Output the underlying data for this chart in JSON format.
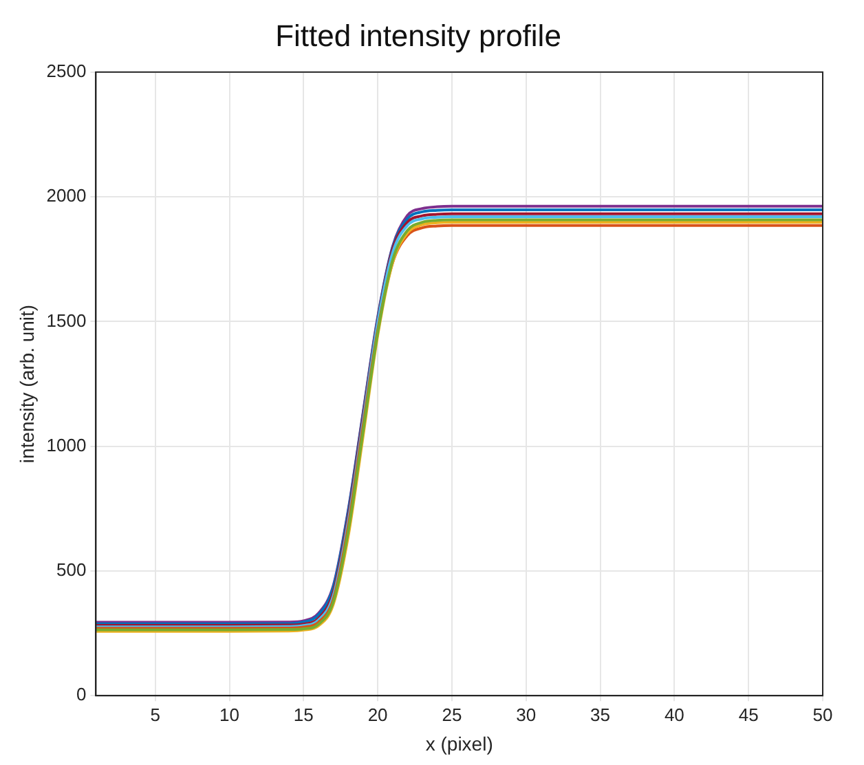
{
  "chart_data": {
    "type": "line",
    "title": "Fitted intensity profile",
    "xlabel": "x (pixel)",
    "ylabel": "intensity (arb. unit)",
    "x": [
      1,
      5,
      10,
      14,
      15,
      16,
      17,
      18,
      19,
      20,
      21,
      22,
      23,
      24,
      25,
      30,
      40,
      50
    ],
    "xlim": [
      1,
      50
    ],
    "xticks": [
      5,
      10,
      15,
      20,
      25,
      30,
      35,
      40,
      45,
      50
    ],
    "ylim": [
      0,
      2500
    ],
    "yticks": [
      0,
      500,
      1000,
      1500,
      2000,
      2500
    ],
    "grid": true,
    "legend": false,
    "marker": "none",
    "line_style": "solid",
    "series": [
      {
        "color": "#77ac30",
        "values": [
          264,
          264,
          264,
          265,
          268,
          286,
          375,
          655,
          1055,
          1455,
          1745,
          1865,
          1898,
          1906,
          1908,
          1908,
          1908,
          1908
        ]
      },
      {
        "color": "#edb120",
        "values": [
          258,
          258,
          258,
          259,
          263,
          280,
          365,
          635,
          1035,
          1445,
          1735,
          1855,
          1888,
          1896,
          1898,
          1898,
          1898,
          1898
        ]
      },
      {
        "color": "#d95319",
        "values": [
          270,
          270,
          270,
          271,
          275,
          294,
          385,
          675,
          1075,
          1465,
          1735,
          1845,
          1876,
          1883,
          1885,
          1885,
          1885,
          1885
        ]
      },
      {
        "color": "#4dbeee",
        "values": [
          276,
          276,
          276,
          277,
          281,
          303,
          400,
          695,
          1095,
          1495,
          1775,
          1885,
          1912,
          1918,
          1920,
          1920,
          1920,
          1920
        ]
      },
      {
        "color": "#a2142f",
        "values": [
          282,
          282,
          282,
          283,
          287,
          310,
          414,
          714,
          1112,
          1502,
          1788,
          1898,
          1924,
          1930,
          1932,
          1932,
          1932,
          1932
        ]
      },
      {
        "color": "#0072bd",
        "values": [
          288,
          288,
          288,
          289,
          295,
          324,
          434,
          734,
          1124,
          1512,
          1795,
          1912,
          1940,
          1946,
          1948,
          1948,
          1948,
          1948
        ]
      },
      {
        "color": "#7e2f8e",
        "values": [
          294,
          294,
          294,
          295,
          300,
          330,
          440,
          740,
          1130,
          1518,
          1800,
          1925,
          1953,
          1960,
          1962,
          1962,
          1962,
          1962
        ]
      }
    ]
  }
}
